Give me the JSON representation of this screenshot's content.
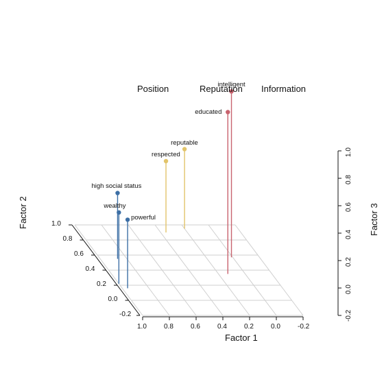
{
  "chart_data": {
    "type": "scatter",
    "legend": [
      "Position",
      "Reputation",
      "Information"
    ],
    "x_axis": {
      "title": "Factor 1",
      "ticks": [
        "1.0",
        "0.8",
        "0.6",
        "0.4",
        "0.2",
        "0.0",
        "-0.2"
      ],
      "range": [
        1.0,
        -0.2
      ]
    },
    "y_axis": {
      "title": "Factor 2",
      "ticks": [
        "1.0",
        "0.8",
        "0.6",
        "0.4",
        "0.2",
        "0.0",
        "-0.2"
      ],
      "range": [
        -0.2,
        1.0
      ]
    },
    "z_axis": {
      "title": "Factor 3",
      "ticks": [
        "1.0",
        "0.8",
        "0.6",
        "0.4",
        "0.2",
        "0.0",
        "-0.2"
      ],
      "range": [
        -0.2,
        1.0
      ]
    },
    "groups": [
      {
        "name": "Position",
        "color": "#3d6fa5",
        "points": [
          {
            "label": "high social status",
            "x": 0.87,
            "y": 0.55,
            "z": 0.28
          },
          {
            "label": "wealthy",
            "x": 1.0,
            "y": 0.22,
            "z": 0.32
          },
          {
            "label": "powerful",
            "x": 0.96,
            "y": 0.16,
            "z": 0.3
          }
        ]
      },
      {
        "name": "Reputation",
        "color": "#e2c46a",
        "points": [
          {
            "label": "reputable",
            "x": 0.2,
            "y": 0.95,
            "z": 0.38
          },
          {
            "label": "respected",
            "x": 0.36,
            "y": 0.9,
            "z": 0.32
          }
        ]
      },
      {
        "name": "Information",
        "color": "#c8636e",
        "points": [
          {
            "label": "intelligent",
            "x": 0.01,
            "y": 0.57,
            "z": 1.01
          },
          {
            "label": "educated",
            "x": 0.13,
            "y": 0.35,
            "z": 0.98
          }
        ]
      }
    ]
  }
}
